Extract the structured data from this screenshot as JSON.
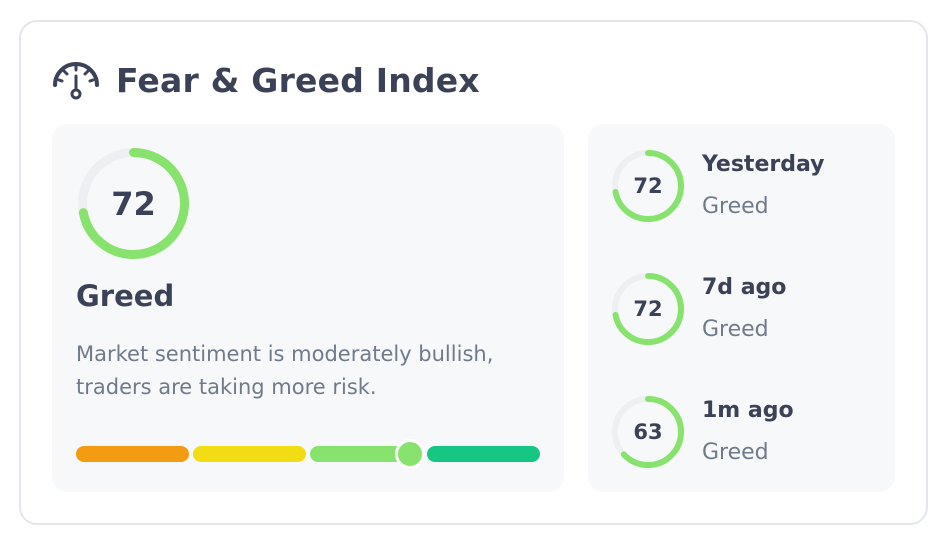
{
  "header": {
    "title": "Fear & Greed Index",
    "icon": "gauge-icon"
  },
  "current": {
    "value": "72",
    "classification": "Greed",
    "description": "Market sentiment is moderately bullish, traders are taking more risk.",
    "ring_color": "#87e36d",
    "track_color": "#eeeff2"
  },
  "scale": {
    "marker_value": 72,
    "segments": [
      {
        "color": "#f39c12"
      },
      {
        "color": "#f2dc14"
      },
      {
        "color": "#87e36d"
      },
      {
        "color": "#16c784"
      }
    ]
  },
  "history": [
    {
      "when": "Yesterday",
      "value": "72",
      "classification": "Greed"
    },
    {
      "when": "7d ago",
      "value": "72",
      "classification": "Greed"
    },
    {
      "when": "1m ago",
      "value": "63",
      "classification": "Greed"
    }
  ]
}
